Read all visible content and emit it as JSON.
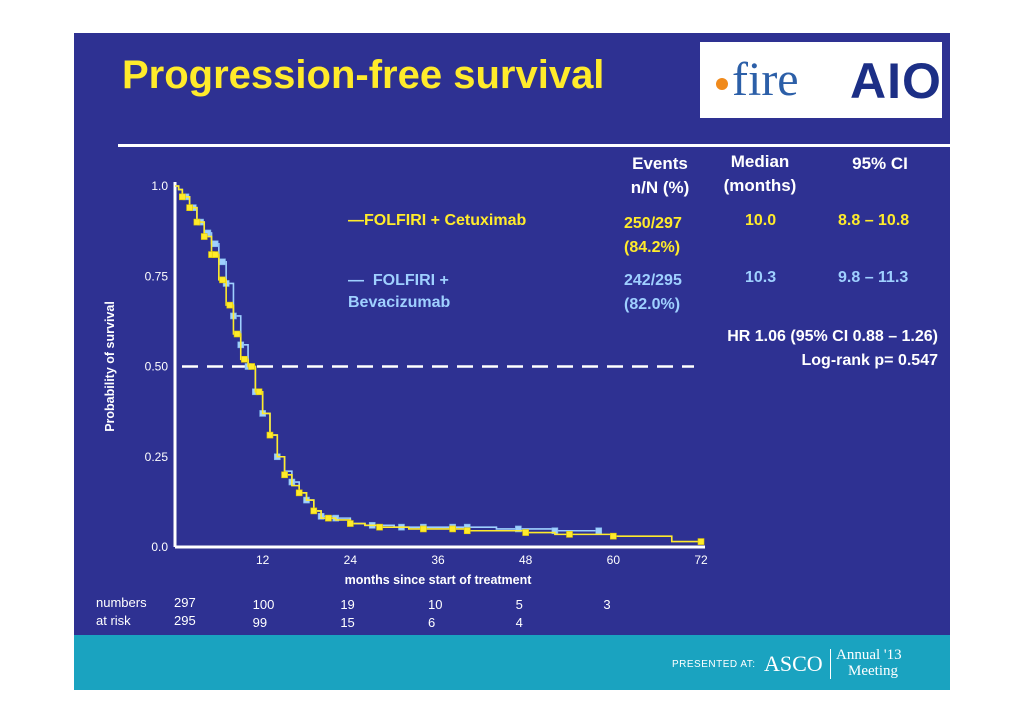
{
  "slide": {
    "title": "Progression-free survival",
    "logos": {
      "fire": "fire",
      "aio": "AIO"
    }
  },
  "table": {
    "headers": {
      "events": [
        "Events",
        "n/N (%)"
      ],
      "median": [
        "Median",
        "(months)"
      ],
      "ci": "95% CI"
    },
    "rows": [
      {
        "label": "FOLFIRI + Cetuximab",
        "label_lines": [
          "—FOLFIRI + Cetuximab"
        ],
        "events": [
          "250/297",
          "(84.2%)"
        ],
        "median": "10.0",
        "ci": "8.8 – 10.8",
        "color": "#ffeb2b"
      },
      {
        "label": "FOLFIRI + Bevacizumab",
        "label_lines": [
          "—  FOLFIRI +",
          "Bevacizumab"
        ],
        "events": [
          "242/295",
          "(82.0%)"
        ],
        "median": "10.3",
        "ci": "9.8 – 11.3",
        "color": "#9fd0ff"
      }
    ],
    "hr": "HR 1.06 (95% CI 0.88 – 1.26)",
    "logrank": "Log-rank p= 0.547"
  },
  "risk_table": {
    "label": [
      "numbers",
      "at risk"
    ],
    "row1": [
      "297",
      "100",
      "19",
      "10",
      "5",
      "3"
    ],
    "row2": [
      "295",
      "99",
      "15",
      "6",
      "4",
      ""
    ]
  },
  "footer": {
    "presented": "PRESENTED AT:",
    "asco": "ASCO",
    "meeting": [
      "Annual '13",
      "Meeting"
    ]
  },
  "chart_data": {
    "type": "line",
    "subtype": "kaplan-meier",
    "xlabel": "months since start of treatment",
    "ylabel": "Probability of survival",
    "xlim": [
      0,
      72
    ],
    "ylim": [
      0,
      1
    ],
    "xticks": [
      "12",
      "24",
      "36",
      "48",
      "60",
      "72"
    ],
    "yticks": [
      "1.0",
      "0.75",
      "0.50",
      "0.25",
      "0.0"
    ],
    "median_line": 0.5,
    "series": [
      {
        "name": "FOLFIRI + Cetuximab",
        "color": "#ffeb2b",
        "x": [
          0,
          0.5,
          1,
          2,
          3,
          4,
          5,
          6,
          7,
          8,
          9,
          10,
          11,
          12,
          13,
          14,
          15,
          16,
          17,
          18,
          19,
          20,
          22,
          24,
          26,
          28,
          30,
          32,
          36,
          40,
          44,
          48,
          52,
          56,
          60,
          64,
          68,
          70,
          72
        ],
        "y": [
          1.0,
          0.99,
          0.97,
          0.94,
          0.9,
          0.86,
          0.81,
          0.74,
          0.67,
          0.59,
          0.52,
          0.5,
          0.43,
          0.37,
          0.31,
          0.25,
          0.2,
          0.17,
          0.15,
          0.13,
          0.1,
          0.08,
          0.075,
          0.065,
          0.06,
          0.055,
          0.055,
          0.05,
          0.05,
          0.045,
          0.045,
          0.04,
          0.035,
          0.035,
          0.03,
          0.03,
          0.015,
          0.015,
          0.015
        ],
        "censor_x": [
          1,
          2,
          3,
          4,
          5,
          5.5,
          6.5,
          7.5,
          8.5,
          9.5,
          10.5,
          11.5,
          13,
          15,
          17,
          19,
          21,
          24,
          28,
          34,
          38,
          40,
          48,
          54,
          60,
          72
        ]
      },
      {
        "name": "FOLFIRI + Bevacizumab",
        "color": "#9fd0ff",
        "x": [
          0,
          0.5,
          1,
          2,
          3,
          4,
          5,
          6,
          7,
          8,
          9,
          10,
          11,
          12,
          13,
          14,
          15,
          16,
          17,
          18,
          19,
          20,
          22,
          24,
          26,
          28,
          30,
          32,
          36,
          40,
          44,
          48,
          52,
          56,
          58
        ],
        "y": [
          1.0,
          0.99,
          0.97,
          0.94,
          0.9,
          0.87,
          0.84,
          0.79,
          0.73,
          0.64,
          0.56,
          0.5,
          0.43,
          0.37,
          0.31,
          0.25,
          0.21,
          0.18,
          0.15,
          0.13,
          0.1,
          0.085,
          0.08,
          0.065,
          0.06,
          0.06,
          0.055,
          0.055,
          0.055,
          0.055,
          0.05,
          0.05,
          0.045,
          0.045,
          0.045
        ],
        "censor_x": [
          1.5,
          2.5,
          3.5,
          4.5,
          5.5,
          6.5,
          7,
          8,
          9,
          10,
          11,
          12,
          14,
          16,
          18,
          20,
          22,
          27,
          31,
          34,
          38,
          40,
          47,
          52,
          58
        ]
      }
    ]
  }
}
